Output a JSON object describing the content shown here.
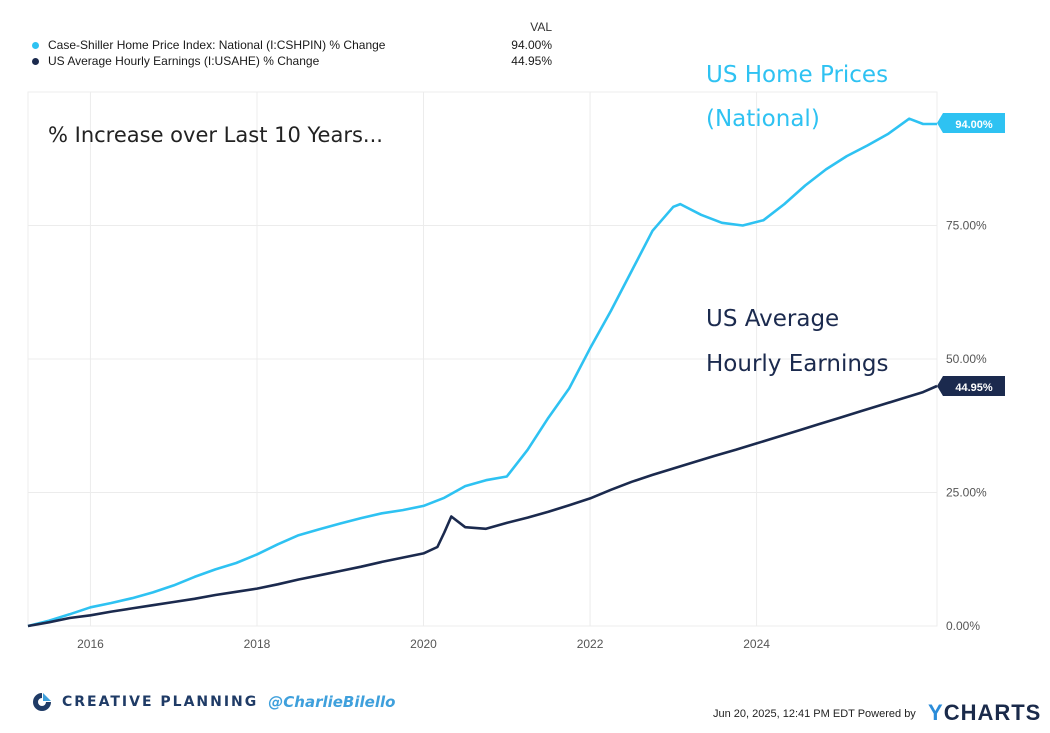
{
  "legend": {
    "header": "VAL",
    "items": [
      {
        "name": "Case-Shiller Home Price Index: National (I:CSHPIN) % Change",
        "value": "94.00%",
        "color": "#2ec2f2"
      },
      {
        "name": "US Average Hourly Earnings (I:USAHE) % Change",
        "value": "44.95%",
        "color": "#1b2a4e"
      }
    ]
  },
  "annotations": {
    "headline": "% Increase over Last 10 Years...",
    "home_label_line1": "US Home Prices",
    "home_label_line2": "(National)",
    "earn_label_line1": "US Average",
    "earn_label_line2": "Hourly Earnings"
  },
  "footer": {
    "brand": "CREATIVE PLANNING",
    "handle": "@CharlieBilello",
    "stamp": "Jun 20, 2025, 12:41 PM EDT Powered by",
    "logo_y": "Y",
    "logo_rest": "CHARTS"
  },
  "chart_data": {
    "type": "line",
    "x_ticks": [
      "2016",
      "2018",
      "2020",
      "2022",
      "2024"
    ],
    "y_ticks": [
      "0.00%",
      "25.00%",
      "50.00%",
      "75.00%"
    ],
    "ylim": [
      0,
      100
    ],
    "grid": true,
    "end_labels": [
      "94.00%",
      "44.95%"
    ],
    "series": [
      {
        "name": "Case-Shiller Home Price Index: National (I:CSHPIN) % Change",
        "color": "#2ec2f2",
        "points": [
          [
            "2015-04",
            0
          ],
          [
            "2015-07",
            1
          ],
          [
            "2015-10",
            2.2
          ],
          [
            "2016-01",
            3.5
          ],
          [
            "2016-04",
            4.3
          ],
          [
            "2016-07",
            5.2
          ],
          [
            "2016-10",
            6.3
          ],
          [
            "2017-01",
            7.6
          ],
          [
            "2017-04",
            9.2
          ],
          [
            "2017-07",
            10.6
          ],
          [
            "2017-10",
            11.8
          ],
          [
            "2018-01",
            13.4
          ],
          [
            "2018-04",
            15.3
          ],
          [
            "2018-07",
            17
          ],
          [
            "2018-10",
            18.1
          ],
          [
            "2019-01",
            19.2
          ],
          [
            "2019-04",
            20.2
          ],
          [
            "2019-07",
            21.1
          ],
          [
            "2019-10",
            21.7
          ],
          [
            "2020-01",
            22.5
          ],
          [
            "2020-04",
            24
          ],
          [
            "2020-07",
            26.2
          ],
          [
            "2020-10",
            27.3
          ],
          [
            "2021-01",
            28
          ],
          [
            "2021-04",
            33
          ],
          [
            "2021-07",
            39
          ],
          [
            "2021-10",
            44.5
          ],
          [
            "2022-01",
            52
          ],
          [
            "2022-04",
            59
          ],
          [
            "2022-07",
            66.5
          ],
          [
            "2022-10",
            74
          ],
          [
            "2023-01",
            78.5
          ],
          [
            "2023-02",
            79
          ],
          [
            "2023-05",
            77
          ],
          [
            "2023-08",
            75.5
          ],
          [
            "2023-11",
            75
          ],
          [
            "2024-02",
            76
          ],
          [
            "2024-05",
            79
          ],
          [
            "2024-08",
            82.5
          ],
          [
            "2024-11",
            85.5
          ],
          [
            "2025-02",
            88
          ],
          [
            "2025-05",
            90
          ],
          [
            "2025-08",
            92.2
          ],
          [
            "2025-11",
            95
          ],
          [
            "2026-01",
            94
          ],
          [
            "2026-03",
            94
          ]
        ]
      },
      {
        "name": "US Average Hourly Earnings (I:USAHE) % Change",
        "color": "#1b2a4e",
        "points": [
          [
            "2015-04",
            0
          ],
          [
            "2015-07",
            0.7
          ],
          [
            "2015-10",
            1.5
          ],
          [
            "2016-01",
            2
          ],
          [
            "2016-04",
            2.7
          ],
          [
            "2016-07",
            3.3
          ],
          [
            "2016-10",
            3.9
          ],
          [
            "2017-01",
            4.5
          ],
          [
            "2017-04",
            5.1
          ],
          [
            "2017-07",
            5.8
          ],
          [
            "2017-10",
            6.4
          ],
          [
            "2018-01",
            7
          ],
          [
            "2018-04",
            7.8
          ],
          [
            "2018-07",
            8.7
          ],
          [
            "2018-10",
            9.5
          ],
          [
            "2019-01",
            10.3
          ],
          [
            "2019-04",
            11.1
          ],
          [
            "2019-07",
            12
          ],
          [
            "2019-10",
            12.8
          ],
          [
            "2020-01",
            13.6
          ],
          [
            "2020-03",
            14.8
          ],
          [
            "2020-04",
            17.5
          ],
          [
            "2020-05",
            20.5
          ],
          [
            "2020-07",
            18.5
          ],
          [
            "2020-10",
            18.2
          ],
          [
            "2021-01",
            19.3
          ],
          [
            "2021-04",
            20.3
          ],
          [
            "2021-07",
            21.4
          ],
          [
            "2021-10",
            22.6
          ],
          [
            "2022-01",
            23.9
          ],
          [
            "2022-04",
            25.5
          ],
          [
            "2022-07",
            27
          ],
          [
            "2022-10",
            28.3
          ],
          [
            "2023-01",
            29.5
          ],
          [
            "2023-04",
            30.7
          ],
          [
            "2023-07",
            31.9
          ],
          [
            "2023-10",
            33
          ],
          [
            "2024-01",
            34.2
          ],
          [
            "2024-04",
            35.4
          ],
          [
            "2024-07",
            36.6
          ],
          [
            "2024-10",
            37.8
          ],
          [
            "2025-01",
            39
          ],
          [
            "2025-04",
            40.2
          ],
          [
            "2025-07",
            41.4
          ],
          [
            "2025-10",
            42.6
          ],
          [
            "2026-01",
            43.8
          ],
          [
            "2026-03",
            44.95
          ]
        ]
      }
    ]
  }
}
